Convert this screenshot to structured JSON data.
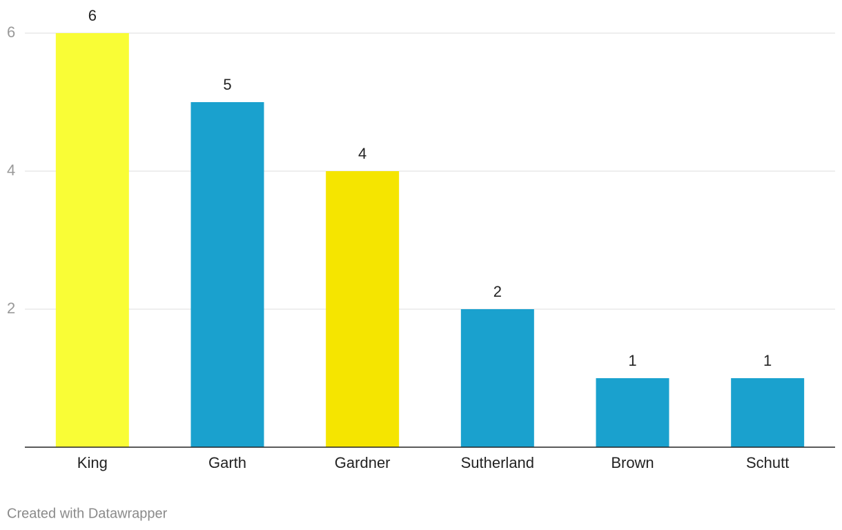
{
  "chart_data": {
    "type": "bar",
    "categories": [
      "King",
      "Garth",
      "Gardner",
      "Sutherland",
      "Brown",
      "Schutt"
    ],
    "values": [
      6,
      5,
      4,
      2,
      1,
      1
    ],
    "colors": [
      "#f9fd36",
      "#1aa1ce",
      "#f5e500",
      "#1aa1ce",
      "#1aa1ce",
      "#1aa1ce"
    ],
    "ylim": [
      0,
      6
    ],
    "yticks": [
      2,
      4,
      6
    ],
    "grid": true,
    "footer": "Created with Datawrapper"
  }
}
